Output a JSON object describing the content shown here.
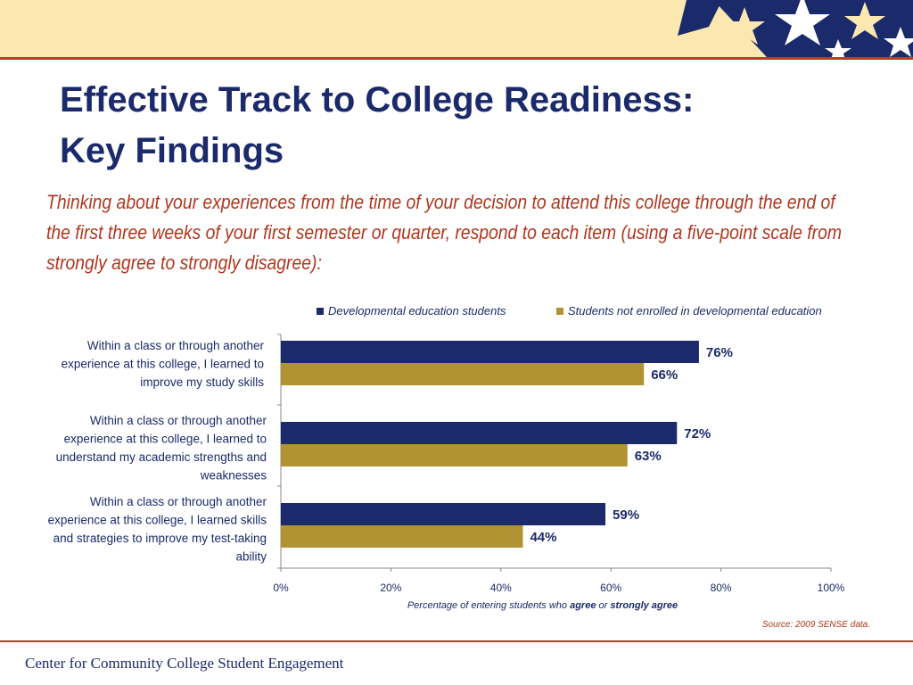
{
  "slide": {
    "title_line1": "Effective Track to College Readiness:",
    "title_line2": "Key Findings",
    "question": "Thinking about your experiences from the time of your decision to attend this college through the end of the first three weeks of your first semester or quarter, respond to each item (using a five-point scale from strongly agree to strongly disagree):",
    "source": "Source: 2009 SENSE data.",
    "footer": "Center for Community College Student Engagement"
  },
  "colors": {
    "dev": "#1b2a6b",
    "nondev": "#b09333",
    "title": "#1b2a6b",
    "accent_red": "#b1361e"
  },
  "chart_data": {
    "type": "bar",
    "orientation": "horizontal",
    "categories": [
      [
        "Within a class or through another",
        "experience at this college, I learned to",
        "improve my study skills"
      ],
      [
        "Within a class or through another",
        "experience at this college, I learned to",
        "understand my academic strengths and",
        "weaknesses"
      ],
      [
        "Within a class or through another",
        "experience at this college, I learned skills",
        "and strategies to improve my test-taking",
        "ability"
      ]
    ],
    "series": [
      {
        "name": "Developmental education students",
        "values": [
          76,
          72,
          59
        ],
        "labels": [
          "76%",
          "72%",
          "59%"
        ]
      },
      {
        "name": "Students not enrolled in developmental education",
        "values": [
          66,
          63,
          44
        ],
        "labels": [
          "66%",
          "63%",
          "44%"
        ]
      }
    ],
    "xlim": [
      0,
      100
    ],
    "xticks": [
      "0%",
      "20%",
      "40%",
      "60%",
      "80%",
      "100%"
    ],
    "xlabel_parts": [
      "Percentage of entering students who ",
      "agree",
      " or ",
      "strongly agree"
    ],
    "legend": "top",
    "grid": false
  }
}
